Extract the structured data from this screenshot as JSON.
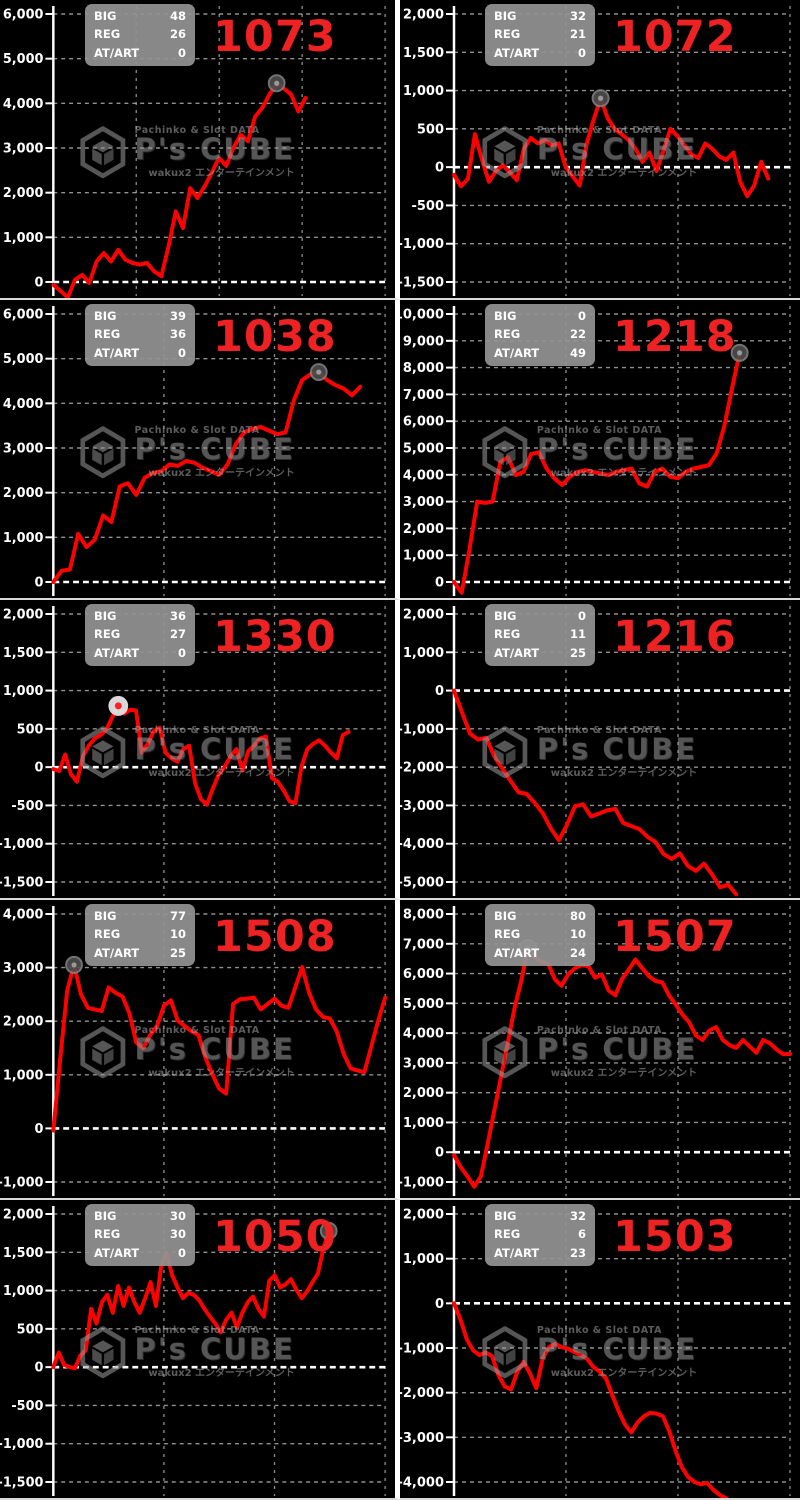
{
  "colors": {
    "line": "#ff0000",
    "machine_no": "#ee2222",
    "panel_bg": "#000000",
    "stats_box": "#949494",
    "grid": "#b5b5b5",
    "zero_line": "#ffffff",
    "axis": "#ffffff",
    "watermark": "#9d9d9d",
    "row_separator": "#d9d9d9",
    "col_separator": "#ffffff",
    "marker": "#555555"
  },
  "stats_labels": [
    "BIG",
    "REG",
    "AT/ART"
  ],
  "watermark": {
    "top": "Pachinko & Slot DATA",
    "brand": "P's CUBE",
    "bottom": "wakux2 エンターテインメント"
  },
  "chart_data": [
    {
      "type": "line",
      "machine_no": "1073",
      "stats": {
        "big": 48,
        "reg": 26,
        "at_art": 0
      },
      "ylim": [
        0,
        6000
      ],
      "y_ticks": [
        "6,000",
        "5,000",
        "4,000",
        "3,000",
        "2,000",
        "1,000",
        "0"
      ],
      "vgrid": 4,
      "x_end": 0.76,
      "has_marker": true,
      "marker_variant": "dark",
      "values": [
        -60,
        -200,
        -350,
        50,
        160,
        -20,
        460,
        650,
        460,
        720,
        500,
        425,
        390,
        425,
        240,
        130,
        800,
        1580,
        1210,
        2100,
        1880,
        2140,
        2450,
        2780,
        2600,
        3000,
        3300,
        3150,
        3700,
        3900,
        4200,
        4450,
        4330,
        4200,
        3820,
        4120
      ]
    },
    {
      "type": "line",
      "machine_no": "1072",
      "stats": {
        "big": 32,
        "reg": 21,
        "at_art": 0
      },
      "ylim": [
        -1500,
        2000
      ],
      "y_ticks": [
        "2,000",
        "1,500",
        "1,000",
        "500",
        "0",
        "-500",
        "-1,000",
        "-1,500"
      ],
      "vgrid": 3,
      "x_end": 0.935,
      "has_marker": true,
      "marker_variant": "dark",
      "values": [
        -100,
        -250,
        -150,
        430,
        100,
        -190,
        -50,
        25,
        -70,
        -170,
        240,
        380,
        310,
        355,
        285,
        310,
        0,
        -120,
        -240,
        300,
        620,
        900,
        640,
        500,
        430,
        355,
        240,
        70,
        190,
        -50,
        215,
        500,
        405,
        285,
        165,
        120,
        310,
        240,
        140,
        95,
        190,
        -190,
        -380,
        -240,
        70,
        -150
      ]
    },
    {
      "type": "line",
      "machine_no": "1038",
      "stats": {
        "big": 39,
        "reg": 36,
        "at_art": 0
      },
      "ylim": [
        0,
        6000
      ],
      "y_ticks": [
        "6,000",
        "5,000",
        "4,000",
        "3,000",
        "2,000",
        "1,000",
        "0"
      ],
      "vgrid": 3,
      "x_end": 0.925,
      "has_marker": true,
      "marker_variant": "dark",
      "values": [
        0,
        250,
        280,
        1080,
        780,
        950,
        1490,
        1340,
        2140,
        2210,
        1950,
        2330,
        2440,
        2480,
        2630,
        2600,
        2710,
        2670,
        2560,
        2480,
        2400,
        2630,
        3090,
        3350,
        3430,
        3470,
        3390,
        3310,
        3350,
        4070,
        4520,
        4650,
        4700,
        4520,
        4410,
        4330,
        4180,
        4370
      ]
    },
    {
      "type": "line",
      "machine_no": "1218",
      "stats": {
        "big": 0,
        "reg": 22,
        "at_art": 49
      },
      "ylim": [
        0,
        10000
      ],
      "y_ticks": [
        "10,000",
        "9,000",
        "8,000",
        "7,000",
        "6,000",
        "5,000",
        "4,000",
        "3,000",
        "2,000",
        "1,000",
        "0"
      ],
      "vgrid": 3,
      "x_end": 0.85,
      "has_marker": true,
      "marker_variant": "dark",
      "values": [
        0,
        -400,
        1200,
        3000,
        2950,
        3000,
        4480,
        4660,
        3990,
        4110,
        4780,
        4840,
        4230,
        3870,
        3620,
        3930,
        4110,
        4170,
        4110,
        4050,
        3990,
        4110,
        4170,
        4230,
        3680,
        3560,
        4110,
        4230,
        3930,
        3870,
        4110,
        4230,
        4290,
        4360,
        4780,
        5800,
        7200,
        8550
      ]
    },
    {
      "type": "line",
      "machine_no": "1330",
      "stats": {
        "big": 36,
        "reg": 27,
        "at_art": 0
      },
      "ylim": [
        -1500,
        2000
      ],
      "y_ticks": [
        "2,000",
        "1,500",
        "1,000",
        "500",
        "0",
        "-500",
        "-1,000",
        "-1,500"
      ],
      "vgrid": 3,
      "x_end": 0.89,
      "has_marker": true,
      "marker_variant": "light",
      "values": [
        -25,
        -50,
        165,
        -95,
        -190,
        140,
        280,
        375,
        420,
        490,
        655,
        800,
        700,
        750,
        740,
        190,
        305,
        470,
        515,
        190,
        115,
        70,
        235,
        280,
        -210,
        -420,
        -490,
        -280,
        -95,
        0,
        140,
        235,
        -45,
        210,
        280,
        375,
        400,
        -140,
        -190,
        -305,
        -445,
        -470,
        0,
        235,
        305,
        350,
        280,
        190,
        115,
        420,
        460
      ]
    },
    {
      "type": "line",
      "machine_no": "1216",
      "stats": {
        "big": 0,
        "reg": 11,
        "at_art": 25
      },
      "ylim": [
        -5000,
        2000
      ],
      "y_ticks": [
        "2,000",
        "1,000",
        "0",
        "-1,000",
        "-2,000",
        "-3,000",
        "-4,000",
        "-5,000"
      ],
      "vgrid": 3,
      "x_end": 0.84,
      "has_marker": false,
      "marker_variant": "dark",
      "values": [
        0,
        -580,
        -1130,
        -1280,
        -1230,
        -1720,
        -2040,
        -2350,
        -2660,
        -2700,
        -2930,
        -3200,
        -3600,
        -3910,
        -3510,
        -3020,
        -2970,
        -3290,
        -3210,
        -3130,
        -3090,
        -3460,
        -3540,
        -3620,
        -3820,
        -3960,
        -4270,
        -4400,
        -4250,
        -4580,
        -4710,
        -4520,
        -4800,
        -5140,
        -5070,
        -5320
      ]
    },
    {
      "type": "line",
      "machine_no": "1508",
      "stats": {
        "big": 77,
        "reg": 10,
        "at_art": 25
      },
      "ylim": [
        -1000,
        4000
      ],
      "y_ticks": [
        "4,000",
        "3,000",
        "2,000",
        "1,000",
        "0",
        "-1,000"
      ],
      "vgrid": 3,
      "x_end": 1.0,
      "has_marker": true,
      "marker_variant": "dark",
      "values": [
        -40,
        1300,
        2570,
        3050,
        2500,
        2250,
        2220,
        2190,
        2630,
        2530,
        2460,
        2150,
        1600,
        1500,
        1740,
        1910,
        2290,
        2390,
        2010,
        1910,
        1810,
        1740,
        1320,
        1010,
        740,
        650,
        2320,
        2410,
        2420,
        2440,
        2220,
        2320,
        2420,
        2290,
        2250,
        2630,
        3010,
        2530,
        2220,
        2080,
        2050,
        1810,
        1390,
        1120,
        1080,
        1050,
        1530,
        2010,
        2440
      ]
    },
    {
      "type": "line",
      "machine_no": "1507",
      "stats": {
        "big": 80,
        "reg": 10,
        "at_art": 24
      },
      "ylim": [
        -1000,
        8000
      ],
      "y_ticks": [
        "8,000",
        "7,000",
        "6,000",
        "5,000",
        "4,000",
        "3,000",
        "2,000",
        "1,000",
        "0",
        "-1,000"
      ],
      "vgrid": 3,
      "x_end": 1.0,
      "has_marker": true,
      "marker_variant": "dark",
      "values": [
        -100,
        -500,
        -810,
        -1160,
        -810,
        270,
        1400,
        2530,
        3660,
        4840,
        5750,
        6860,
        6560,
        6400,
        6340,
        5810,
        5590,
        5970,
        6180,
        6290,
        6240,
        5860,
        5970,
        5430,
        5270,
        5810,
        6130,
        6470,
        6180,
        5910,
        5750,
        5700,
        5270,
        4950,
        4620,
        4360,
        3920,
        3770,
        4090,
        4200,
        3770,
        3600,
        3500,
        3770,
        3550,
        3340,
        3770,
        3660,
        3450,
        3290,
        3300
      ]
    },
    {
      "type": "line",
      "machine_no": "1050",
      "stats": {
        "big": 30,
        "reg": 30,
        "at_art": 0
      },
      "ylim": [
        -1500,
        2000
      ],
      "y_ticks": [
        "2,000",
        "1,500",
        "1,000",
        "500",
        "0",
        "-500",
        "-1,000",
        "-1,500"
      ],
      "vgrid": 3,
      "x_end": 0.83,
      "has_marker": true,
      "marker_variant": "dark",
      "values": [
        0,
        190,
        30,
        0,
        -15,
        150,
        220,
        760,
        570,
        850,
        945,
        710,
        1060,
        800,
        1040,
        850,
        710,
        900,
        1110,
        800,
        1340,
        1480,
        1200,
        1040,
        900,
        970,
        945,
        875,
        760,
        660,
        570,
        455,
        620,
        710,
        520,
        710,
        850,
        920,
        760,
        660,
        1130,
        1200,
        1040,
        1080,
        1150,
        1010,
        900,
        990,
        1110,
        1220,
        1550,
        1780
      ]
    },
    {
      "type": "line",
      "machine_no": "1503",
      "stats": {
        "big": 32,
        "reg": 6,
        "at_art": 23
      },
      "ylim": [
        -4000,
        2000
      ],
      "y_ticks": [
        "2,000",
        "1,000",
        "0",
        "-1,000",
        "-2,000",
        "-3,000",
        "-4,000"
      ],
      "vgrid": 3,
      "x_end": 0.81,
      "has_marker": false,
      "marker_variant": "dark",
      "values": [
        0,
        -350,
        -800,
        -1050,
        -1160,
        -1100,
        -1180,
        -1600,
        -1860,
        -1930,
        -1530,
        -1310,
        -1570,
        -1900,
        -1240,
        -980,
        -905,
        -980,
        -1015,
        -1090,
        -1160,
        -1240,
        -1420,
        -1530,
        -1680,
        -2050,
        -2410,
        -2710,
        -2890,
        -2670,
        -2530,
        -2450,
        -2470,
        -2530,
        -2860,
        -3300,
        -3670,
        -3890,
        -4000,
        -4050,
        -4020,
        -4180,
        -4290,
        -4370
      ]
    }
  ]
}
